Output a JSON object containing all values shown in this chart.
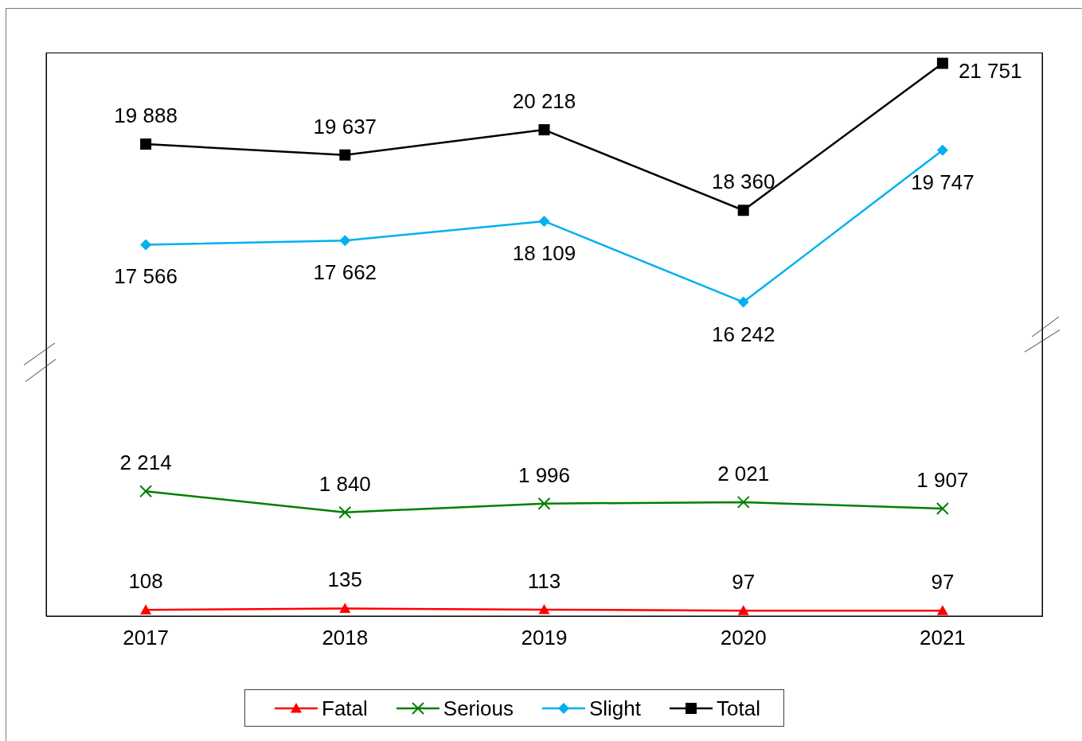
{
  "chart_data": {
    "type": "line",
    "categories": [
      "2017",
      "2018",
      "2019",
      "2020",
      "2021"
    ],
    "series": [
      {
        "name": "Fatal",
        "color": "#ff0000",
        "marker": "triangle",
        "values": [
          108,
          135,
          113,
          97,
          97
        ],
        "value_labels": [
          "108",
          "135",
          "113",
          "97",
          "97"
        ]
      },
      {
        "name": "Serious",
        "color": "#008000",
        "marker": "cross",
        "values": [
          2214,
          1840,
          1996,
          2021,
          1907
        ],
        "value_labels": [
          "2 214",
          "1 840",
          "1 996",
          "2 021",
          "1 907"
        ]
      },
      {
        "name": "Slight",
        "color": "#00b0f0",
        "marker": "diamond",
        "axis": "y2",
        "values": [
          17566,
          17662,
          18109,
          16242,
          19747
        ],
        "value_labels": [
          "17 566",
          "17 662",
          "18 109",
          "16 242",
          "19 747"
        ]
      },
      {
        "name": "Total",
        "color": "#000000",
        "marker": "square",
        "axis": "y2",
        "values": [
          19888,
          19637,
          20218,
          18360,
          21751
        ],
        "value_labels": [
          "19 888",
          "19 637",
          "20 218",
          "18 360",
          "21 751"
        ]
      }
    ],
    "ylim": [
      0,
      10000
    ],
    "y2lim": [
      9000,
      22000
    ],
    "tick_labels": "x",
    "legend": "bottom"
  }
}
